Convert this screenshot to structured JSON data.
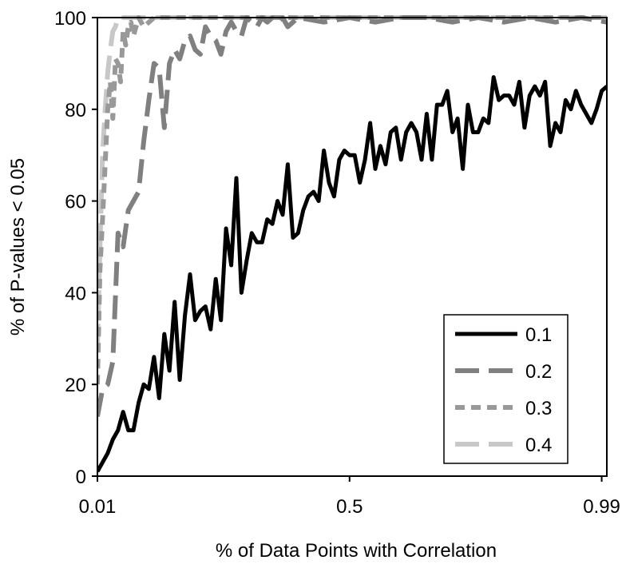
{
  "chart_data": {
    "type": "line",
    "xlabel": "% of Data Points with Correlation",
    "ylabel": "% of P-values < 0.05",
    "xlim": [
      0.01,
      1.0
    ],
    "ylim": [
      0,
      100
    ],
    "x_ticks": [
      0.01,
      0.5,
      0.99
    ],
    "x_tick_labels": [
      "0.01",
      "0.5",
      "0.99"
    ],
    "y_ticks": [
      0,
      20,
      40,
      60,
      80,
      100
    ],
    "y_tick_labels": [
      "0",
      "20",
      "40",
      "60",
      "80",
      "100"
    ],
    "grid": false,
    "legend_position": "bottom-right",
    "series": [
      {
        "name": "0.1",
        "color": "#000000",
        "dash": "solid",
        "x": [
          0.01,
          0.02,
          0.03,
          0.04,
          0.05,
          0.06,
          0.07,
          0.08,
          0.09,
          0.1,
          0.11,
          0.12,
          0.13,
          0.14,
          0.15,
          0.16,
          0.17,
          0.18,
          0.19,
          0.2,
          0.21,
          0.22,
          0.23,
          0.24,
          0.25,
          0.26,
          0.27,
          0.28,
          0.29,
          0.3,
          0.31,
          0.32,
          0.33,
          0.34,
          0.35,
          0.36,
          0.37,
          0.38,
          0.39,
          0.4,
          0.41,
          0.42,
          0.43,
          0.44,
          0.45,
          0.46,
          0.47,
          0.48,
          0.49,
          0.5,
          0.51,
          0.52,
          0.53,
          0.54,
          0.55,
          0.56,
          0.57,
          0.58,
          0.59,
          0.6,
          0.61,
          0.62,
          0.63,
          0.64,
          0.65,
          0.66,
          0.67,
          0.68,
          0.69,
          0.7,
          0.71,
          0.72,
          0.73,
          0.74,
          0.75,
          0.76,
          0.77,
          0.78,
          0.79,
          0.8,
          0.81,
          0.82,
          0.83,
          0.84,
          0.85,
          0.86,
          0.87,
          0.88,
          0.89,
          0.9,
          0.91,
          0.92,
          0.93,
          0.94,
          0.95,
          0.96,
          0.97,
          0.98,
          0.99,
          1.0
        ],
        "values": [
          1,
          3,
          5,
          8,
          10,
          14,
          10,
          10,
          16,
          20,
          19,
          26,
          17,
          31,
          23,
          38,
          21,
          35,
          44,
          34,
          36,
          37,
          32,
          43,
          34,
          54,
          46,
          65,
          40,
          47,
          53,
          51,
          51,
          56,
          55,
          60,
          57,
          68,
          52,
          53,
          58,
          61,
          62,
          60,
          71,
          64,
          61,
          69,
          71,
          70,
          70,
          64,
          69,
          77,
          67,
          72,
          68,
          75,
          76,
          69,
          75,
          77,
          75,
          69,
          79,
          69,
          81,
          81,
          84,
          75,
          78,
          67,
          81,
          75,
          75,
          78,
          77,
          87,
          82,
          83,
          83,
          81,
          86,
          76,
          83,
          85,
          83,
          86,
          72,
          77,
          75,
          82,
          80,
          84,
          81,
          79,
          77,
          80,
          84,
          85
        ]
      },
      {
        "name": "0.2",
        "color": "#808080",
        "dash": "long-dash",
        "x": [
          0.01,
          0.02,
          0.03,
          0.04,
          0.05,
          0.06,
          0.07,
          0.08,
          0.09,
          0.1,
          0.11,
          0.12,
          0.13,
          0.14,
          0.15,
          0.16,
          0.17,
          0.18,
          0.19,
          0.2,
          0.21,
          0.22,
          0.23,
          0.24,
          0.25,
          0.26,
          0.27,
          0.28,
          0.29,
          0.3,
          0.31,
          0.32,
          0.33,
          0.34,
          0.35,
          0.36,
          0.37,
          0.38,
          0.39,
          0.4,
          0.45,
          0.5,
          0.55,
          0.6,
          0.65,
          0.7,
          0.75,
          0.8,
          0.85,
          0.9,
          0.95,
          1.0
        ],
        "values": [
          13,
          19,
          20,
          25,
          53,
          50,
          58,
          60,
          62,
          73,
          82,
          90,
          89,
          76,
          90,
          93,
          91,
          95,
          96,
          93,
          92,
          98,
          96,
          95,
          92,
          97,
          99,
          97,
          96,
          100,
          99,
          98,
          100,
          99,
          100,
          99,
          100,
          98,
          99,
          100,
          99,
          100,
          99,
          100,
          100,
          99,
          100,
          99,
          100,
          99,
          100,
          99
        ]
      },
      {
        "name": "0.3",
        "color": "#999999",
        "dash": "short-dash",
        "x": [
          0.01,
          0.015,
          0.02,
          0.025,
          0.03,
          0.035,
          0.04,
          0.045,
          0.05,
          0.055,
          0.06,
          0.065,
          0.07,
          0.075,
          0.08,
          0.09,
          0.1,
          0.12,
          0.15,
          0.2,
          0.3,
          0.4,
          0.5,
          0.6,
          0.7,
          0.8,
          0.9,
          1.0
        ],
        "values": [
          20,
          45,
          56,
          68,
          80,
          86,
          78,
          91,
          90,
          86,
          97,
          94,
          98,
          99,
          96,
          100,
          98,
          100,
          100,
          100,
          100,
          100,
          100,
          100,
          100,
          100,
          100,
          100
        ]
      },
      {
        "name": "0.4",
        "color": "#c8c8c8",
        "dash": "long-dash",
        "x": [
          0.01,
          0.015,
          0.02,
          0.025,
          0.03,
          0.035,
          0.04,
          0.045,
          0.05,
          0.06,
          0.07,
          0.08,
          0.1,
          0.2,
          0.4,
          0.6,
          0.8,
          1.0
        ],
        "values": [
          28,
          50,
          70,
          80,
          88,
          93,
          97,
          98,
          100,
          100,
          100,
          100,
          100,
          100,
          100,
          100,
          100,
          100
        ]
      }
    ]
  }
}
